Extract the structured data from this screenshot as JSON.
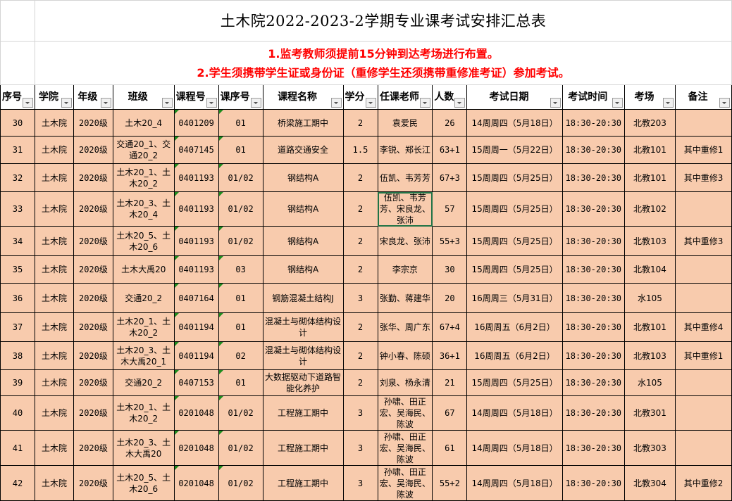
{
  "title": "土木院2022-2023-2学期专业课考试安排汇总表",
  "notes": [
    "1.监考教师须提前15分钟到达考场进行布置。",
    "2.学生须携带学生证或身份证（重修学生还须携带重修准考证）参加考试。"
  ],
  "columns": [
    "序号",
    "学院",
    "年级",
    "班级",
    "课程号",
    "课序号",
    "课程名称",
    "学分",
    "任课老师",
    "人数",
    "考试日期",
    "考试时间",
    "考场",
    "备注"
  ],
  "colors": {
    "cell_fill": "#f8cbad",
    "note_red": "#ff0000",
    "selection": "#217346"
  },
  "selected_cell": {
    "row": 3,
    "column": "任课老师"
  },
  "rows": [
    [
      "30",
      "土木院",
      "2020级",
      "土木20_4",
      "0401209",
      "01",
      "桥梁施工期中",
      "2",
      "袁爱民",
      "26",
      "14周周四（5月18日）",
      "18:30-20:30",
      "北教203",
      ""
    ],
    [
      "31",
      "土木院",
      "2020级",
      "交通20_1、交通20_2",
      "0407145",
      "01",
      "道路交通安全",
      "1.5",
      "李锐、郑长江",
      "63+1",
      "15周周一（5月22日）",
      "18:30-20:30",
      "北教101",
      "其中重修1"
    ],
    [
      "32",
      "土木院",
      "2020级",
      "土木20_1、土木20_2",
      "0401193",
      "01/02",
      "钢结构A",
      "2",
      "伍凯、韦芳芳",
      "67+3",
      "15周周四（5月25日）",
      "18:30-20:30",
      "北教101",
      "其中重修3"
    ],
    [
      "33",
      "土木院",
      "2020级",
      "土木20_3、土木20_4",
      "0401193",
      "01/02",
      "钢结构A",
      "2",
      "伍凯、韦芳芳、宋良龙、张沛",
      "57",
      "15周周四（5月25日）",
      "18:30-20:30",
      "北教102",
      ""
    ],
    [
      "34",
      "土木院",
      "2020级",
      "土木20_5、土木20_6",
      "0401193",
      "01/02",
      "钢结构A",
      "2",
      "宋良龙、张沛",
      "55+3",
      "15周周四（5月25日）",
      "18:30-20:30",
      "北教103",
      "其中重修3"
    ],
    [
      "35",
      "土木院",
      "2020级",
      "土木大禹20",
      "0401193",
      "03",
      "钢结构A",
      "2",
      "李宗京",
      "30",
      "15周周四（5月25日）",
      "18:30-20:30",
      "北教104",
      ""
    ],
    [
      "36",
      "土木院",
      "2020级",
      "交通20_2",
      "0407164",
      "01",
      "钢筋混凝土结构J",
      "3",
      "张勤、蒋建华",
      "20",
      "16周周三（5月31日）",
      "18:30-20:30",
      "水105",
      ""
    ],
    [
      "37",
      "土木院",
      "2020级",
      "土木20_1、土木20_2",
      "0401194",
      "01",
      "混凝土与砌体结构设计",
      "2",
      "张华、周广东",
      "67+4",
      "16周周五（6月2日）",
      "18:30-20:30",
      "北教101",
      "其中重修4"
    ],
    [
      "38",
      "土木院",
      "2020级",
      "土木20_3、土木大禹20_1",
      "0401194",
      "02",
      "混凝土与砌体结构设计",
      "2",
      "钟小春、陈硕",
      "36+1",
      "16周周五（6月2日）",
      "18:30-20:30",
      "北教103",
      "其中重修1"
    ],
    [
      "39",
      "土木院",
      "2020级",
      "交通20_2",
      "0407153",
      "01",
      "大数据驱动下道路智能化养护",
      "2",
      "刘泉、杨永清",
      "21",
      "15周周四（5月25日）",
      "18:30-20:30",
      "水105",
      ""
    ],
    [
      "40",
      "土木院",
      "2020级",
      "土木20_1、土木20_2",
      "0201048",
      "01/02",
      "工程施工期中",
      "3",
      "孙啸、田正宏、吴海民、陈波",
      "67",
      "14周周四（5月18日）",
      "18:30-20:30",
      "北教301",
      ""
    ],
    [
      "41",
      "土木院",
      "2020级",
      "土木20_3、土木大禹20",
      "0201048",
      "01/02",
      "工程施工期中",
      "3",
      "孙啸、田正宏、吴海民、陈波",
      "61",
      "14周周四（5月18日）",
      "18:30-20:30",
      "北教303",
      ""
    ],
    [
      "42",
      "土木院",
      "2020级",
      "土木20_5、土木20_6",
      "0201048",
      "01/02",
      "工程施工期中",
      "3",
      "孙啸、田正宏、吴海民、陈波",
      "55+2",
      "14周周四（5月18日）",
      "18:30-20:30",
      "北教304",
      "其中重修2"
    ]
  ]
}
